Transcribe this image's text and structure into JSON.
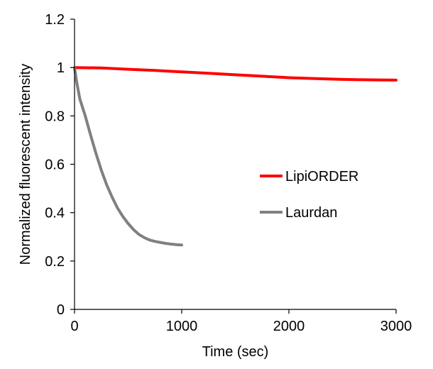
{
  "chart_data": {
    "type": "line",
    "title": "",
    "xlabel": "Time (sec)",
    "ylabel": "Normalized fluorescent intensity",
    "xlim": [
      0,
      3000
    ],
    "ylim": [
      0,
      1.2
    ],
    "x_ticks": [
      0,
      1000,
      2000,
      3000
    ],
    "y_ticks": [
      0,
      0.2,
      0.4,
      0.6,
      0.8,
      1,
      1.2
    ],
    "x_tick_labels": [
      "0",
      "1000",
      "2000",
      "3000"
    ],
    "y_tick_labels": [
      "0",
      "0.2",
      "0.4",
      "0.6",
      "0.8",
      "1",
      "1.2"
    ],
    "grid": false,
    "legend_position": "right",
    "series": [
      {
        "name": "LipiORDER",
        "color": "#ff0000",
        "x": [
          0,
          250,
          500,
          750,
          1000,
          1250,
          1500,
          1750,
          2000,
          2250,
          2500,
          2750,
          3000
        ],
        "y": [
          1.0,
          0.998,
          0.993,
          0.988,
          0.982,
          0.976,
          0.97,
          0.964,
          0.958,
          0.954,
          0.951,
          0.949,
          0.948
        ]
      },
      {
        "name": "Laurdan",
        "color": "#808080",
        "x": [
          0,
          20,
          50,
          100,
          150,
          200,
          250,
          300,
          350,
          400,
          450,
          500,
          550,
          600,
          650,
          700,
          750,
          800,
          850,
          900,
          950,
          1000
        ],
        "y": [
          1.0,
          0.94,
          0.87,
          0.8,
          0.72,
          0.645,
          0.575,
          0.515,
          0.465,
          0.42,
          0.385,
          0.355,
          0.33,
          0.31,
          0.297,
          0.287,
          0.281,
          0.277,
          0.273,
          0.27,
          0.268,
          0.266
        ]
      }
    ]
  }
}
